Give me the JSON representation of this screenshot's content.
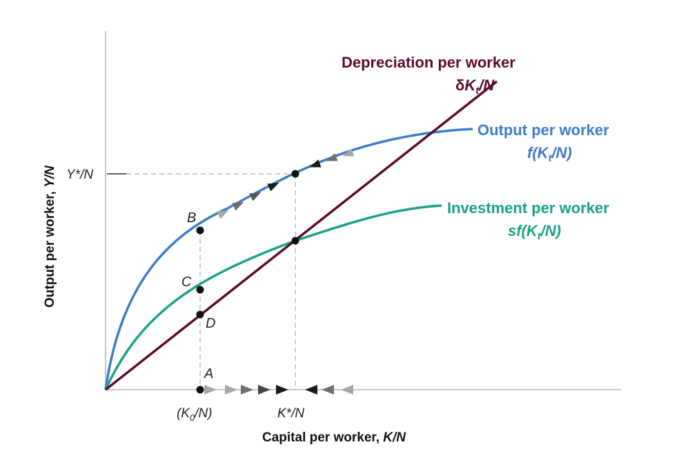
{
  "axes": {
    "y_label_main": "Output per worker, ",
    "y_label_var": "Y/N",
    "x_label_main": "Capital per worker, ",
    "x_label_var": "K/N"
  },
  "ticks": {
    "y_star": "Y*/N",
    "k0_open": "(K",
    "k0_sub": "0",
    "k0_close": "/N)",
    "k_star": "K*/N"
  },
  "points": {
    "A": "A",
    "B": "B",
    "C": "C",
    "D": "D"
  },
  "curves": {
    "depreciation": {
      "title": "Depreciation per worker",
      "formula_a": "δ",
      "formula_b": "K",
      "formula_sub": "t",
      "formula_c": "/N",
      "color": "#5c0a2e"
    },
    "output": {
      "title": "Output per worker",
      "formula_a": "f(",
      "formula_b": "K",
      "formula_sub": "t",
      "formula_c": "/N)",
      "color": "#3d7cc9"
    },
    "investment": {
      "title": "Investment per worker",
      "formula_a": "sf(",
      "formula_b": "K",
      "formula_sub": "t",
      "formula_c": "/N)",
      "color": "#1aa286"
    }
  },
  "colors": {
    "axis": "#b3b3b3",
    "guides": "#aaaaaa",
    "arrow_light": "#a6a6a6",
    "arrow_mid": "#6e6e6e",
    "arrow_dark": "#1a1a1a"
  }
}
